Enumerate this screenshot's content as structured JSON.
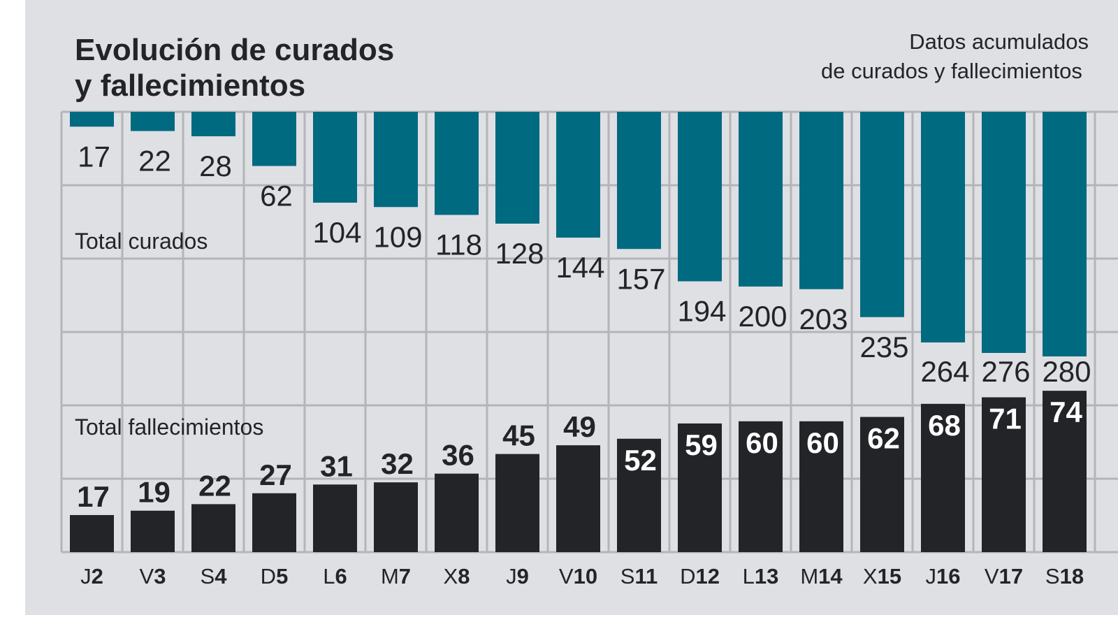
{
  "chart_data": {
    "type": "bar",
    "title": "Evolución de curados y fallecimientos",
    "title_lines": [
      "Evolución de curados",
      "y fallecimientos"
    ],
    "subtitle_lines": [
      "Datos acumulados",
      "de curados y fallecimientos"
    ],
    "categories": [
      {
        "day": "J",
        "num": "2"
      },
      {
        "day": "V",
        "num": "3"
      },
      {
        "day": "S",
        "num": "4"
      },
      {
        "day": "D",
        "num": "5"
      },
      {
        "day": "L",
        "num": "6"
      },
      {
        "day": "M",
        "num": "7"
      },
      {
        "day": "X",
        "num": "8"
      },
      {
        "day": "J",
        "num": "9"
      },
      {
        "day": "V",
        "num": "10"
      },
      {
        "day": "S",
        "num": "11"
      },
      {
        "day": "D",
        "num": "12"
      },
      {
        "day": "L",
        "num": "13"
      },
      {
        "day": "M",
        "num": "14"
      },
      {
        "day": "X",
        "num": "15"
      },
      {
        "day": "J",
        "num": "16"
      },
      {
        "day": "V",
        "num": "17"
      },
      {
        "day": "S",
        "num": "18"
      }
    ],
    "series": [
      {
        "name": "Total curados",
        "color": "#006a80",
        "direction": "down-from-top",
        "values": [
          17,
          22,
          28,
          62,
          104,
          109,
          118,
          128,
          144,
          157,
          194,
          200,
          203,
          235,
          264,
          276,
          280
        ]
      },
      {
        "name": "Total fallecimientos",
        "color": "#232428",
        "direction": "up-from-bottom",
        "values": [
          17,
          19,
          22,
          27,
          31,
          32,
          36,
          45,
          49,
          52,
          59,
          60,
          60,
          62,
          68,
          71,
          74
        ]
      }
    ],
    "grid": true,
    "colors": {
      "background": "#dfe0e4",
      "grid": "#b4b5b9",
      "text": "#232428",
      "inner_label": "#ffffff"
    }
  }
}
